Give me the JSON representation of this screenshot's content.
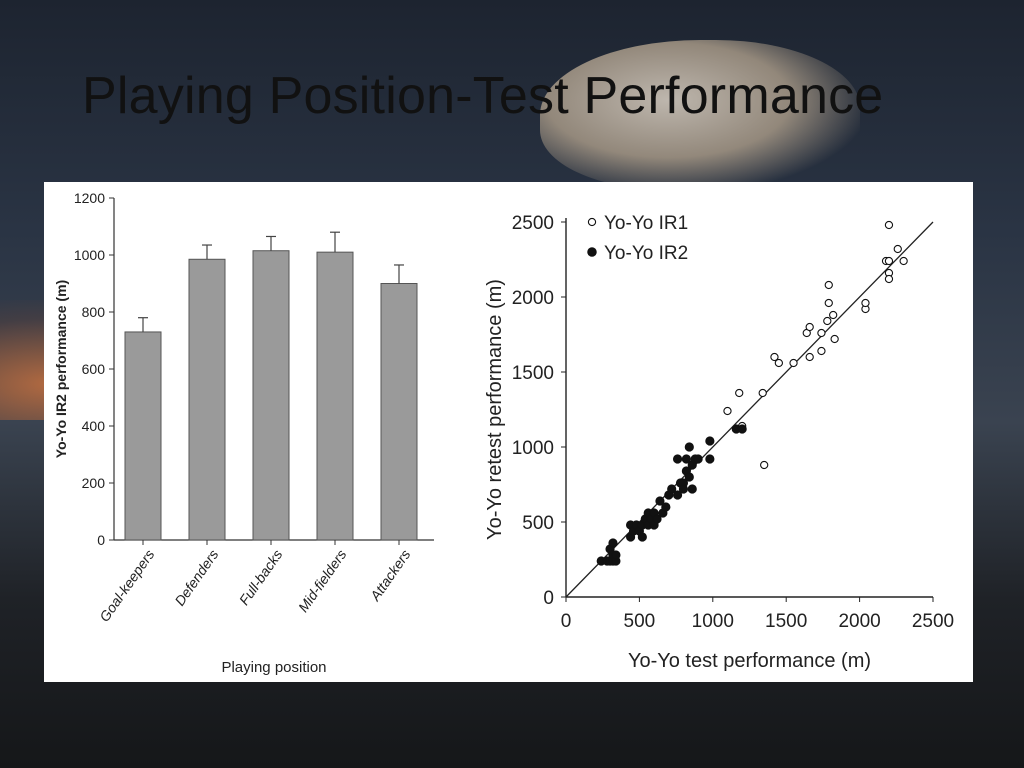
{
  "slide": {
    "title": "Playing Position-Test Performance"
  },
  "chart_data": [
    {
      "type": "bar",
      "xlabel": "Playing position",
      "ylabel": "Yo-Yo IR2 performance (m)",
      "categories": [
        "Goal-keepers",
        "Defenders",
        "Full-backs",
        "Mid-fielders",
        "Attackers"
      ],
      "values": [
        730,
        985,
        1015,
        1010,
        900
      ],
      "errors": [
        50,
        50,
        50,
        70,
        65
      ],
      "ylim": [
        0,
        1200
      ],
      "yticks": [
        0,
        200,
        400,
        600,
        800,
        1000,
        1200
      ],
      "bar_color": "#9a9a9a"
    },
    {
      "type": "scatter",
      "xlabel": "Yo-Yo test performance (m)",
      "ylabel": "Yo-Yo retest performance (m)",
      "xlim": [
        0,
        2500
      ],
      "ylim": [
        0,
        2500
      ],
      "xticks": [
        0,
        500,
        1000,
        1500,
        2000,
        2500
      ],
      "yticks": [
        0,
        500,
        1000,
        1500,
        2000,
        2500
      ],
      "legend_position": "top-left",
      "series": [
        {
          "name": "Yo-Yo IR1",
          "marker": "open-circle",
          "points": [
            [
              1100,
              1240
            ],
            [
              1180,
              1360
            ],
            [
              1340,
              1360
            ],
            [
              1350,
              880
            ],
            [
              1420,
              1600
            ],
            [
              1450,
              1560
            ],
            [
              1550,
              1560
            ],
            [
              1640,
              1760
            ],
            [
              1660,
              1800
            ],
            [
              1660,
              1600
            ],
            [
              1740,
              1640
            ],
            [
              1740,
              1760
            ],
            [
              1780,
              1840
            ],
            [
              1790,
              1960
            ],
            [
              1790,
              2080
            ],
            [
              1820,
              1880
            ],
            [
              1830,
              1720
            ],
            [
              2040,
              1920
            ],
            [
              2040,
              1960
            ],
            [
              2180,
              2240
            ],
            [
              2200,
              2240
            ],
            [
              2200,
              2160
            ],
            [
              2200,
              2120
            ],
            [
              2200,
              2480
            ],
            [
              2260,
              2320
            ],
            [
              2300,
              2240
            ],
            [
              1200,
              1140
            ]
          ]
        },
        {
          "name": "Yo-Yo IR2",
          "marker": "filled-circle",
          "points": [
            [
              240,
              240
            ],
            [
              280,
              240
            ],
            [
              300,
              240
            ],
            [
              320,
              240
            ],
            [
              300,
              320
            ],
            [
              320,
              280
            ],
            [
              340,
              240
            ],
            [
              340,
              280
            ],
            [
              320,
              360
            ],
            [
              440,
              400
            ],
            [
              440,
              480
            ],
            [
              460,
              440
            ],
            [
              480,
              480
            ],
            [
              500,
              440
            ],
            [
              520,
              400
            ],
            [
              520,
              480
            ],
            [
              540,
              520
            ],
            [
              560,
              480
            ],
            [
              560,
              560
            ],
            [
              580,
              520
            ],
            [
              600,
              480
            ],
            [
              600,
              560
            ],
            [
              620,
              520
            ],
            [
              640,
              640
            ],
            [
              660,
              560
            ],
            [
              680,
              600
            ],
            [
              700,
              680
            ],
            [
              720,
              720
            ],
            [
              760,
              680
            ],
            [
              760,
              920
            ],
            [
              780,
              760
            ],
            [
              800,
              760
            ],
            [
              800,
              720
            ],
            [
              820,
              840
            ],
            [
              820,
              920
            ],
            [
              840,
              1000
            ],
            [
              840,
              800
            ],
            [
              860,
              720
            ],
            [
              860,
              880
            ],
            [
              880,
              920
            ],
            [
              900,
              920
            ],
            [
              980,
              920
            ],
            [
              980,
              1040
            ],
            [
              1160,
              1120
            ],
            [
              1200,
              1120
            ]
          ]
        }
      ],
      "reference_line": [
        [
          0,
          0
        ],
        [
          2500,
          2500
        ]
      ]
    }
  ]
}
